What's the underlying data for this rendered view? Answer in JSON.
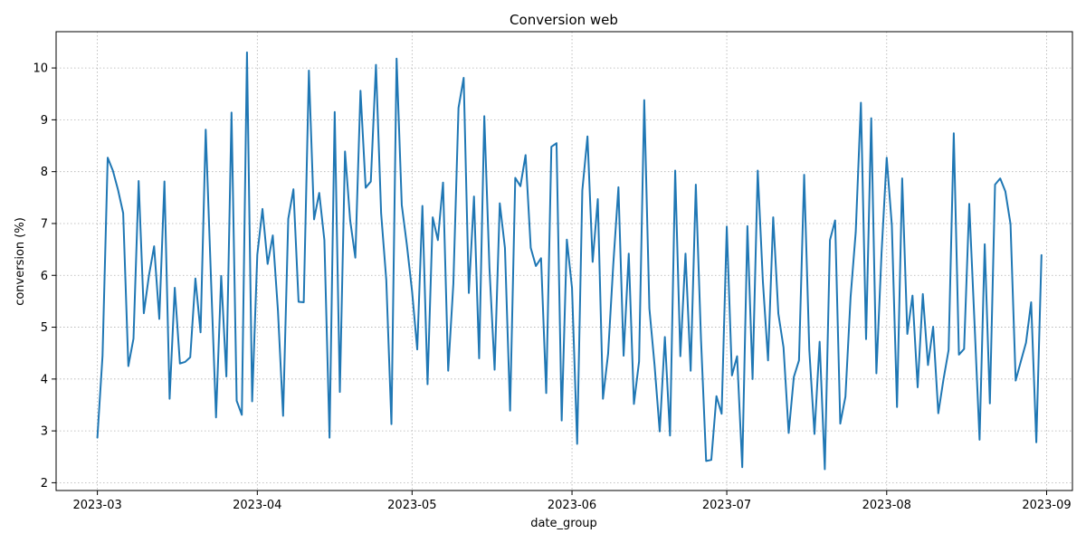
{
  "chart_data": {
    "type": "line",
    "title": "Conversion web",
    "xlabel": "date_group",
    "ylabel": "conversion (%)",
    "grid": true,
    "xlim": [
      "2023-02-21",
      "2023-09-06"
    ],
    "ylim": [
      1.85,
      10.7
    ],
    "x_ticks": [
      "2023-03-01",
      "2023-04-01",
      "2023-05-01",
      "2023-06-01",
      "2023-07-01",
      "2023-08-01",
      "2023-09-01"
    ],
    "x_tick_labels": [
      "2023-03",
      "2023-04",
      "2023-05",
      "2023-06",
      "2023-07",
      "2023-08",
      "2023-09"
    ],
    "y_ticks": [
      2,
      3,
      4,
      5,
      6,
      7,
      8,
      9,
      10
    ],
    "y_tick_labels": [
      "2",
      "3",
      "4",
      "5",
      "6",
      "7",
      "8",
      "9",
      "10"
    ],
    "line_color": "#1f77b4",
    "series": [
      {
        "start_date": "2023-03-01",
        "step_days": 1,
        "values": [
          2.87,
          4.45,
          8.27,
          8.02,
          7.65,
          7.2,
          4.25,
          4.78,
          7.82,
          5.27,
          6.0,
          6.56,
          5.16,
          7.81,
          3.62,
          5.76,
          4.3,
          4.33,
          4.42,
          5.94,
          4.9,
          8.81,
          6.0,
          3.26,
          5.99,
          4.05,
          9.14,
          3.58,
          3.31,
          10.3,
          3.57,
          6.4,
          7.28,
          6.22,
          6.77,
          5.32,
          3.29,
          7.09,
          7.66,
          5.49,
          5.48,
          9.95,
          7.08,
          7.59,
          6.68,
          2.87,
          9.15,
          3.75,
          8.39,
          7.06,
          6.34,
          9.56,
          7.69,
          7.81,
          10.06,
          7.2,
          5.91,
          3.13,
          10.18,
          7.36,
          6.58,
          5.69,
          4.57,
          7.34,
          3.9,
          7.12,
          6.68,
          7.79,
          4.16,
          5.84,
          9.23,
          9.81,
          5.66,
          7.52,
          4.4,
          9.07,
          6.14,
          4.18,
          7.39,
          6.53,
          3.39,
          7.88,
          7.72,
          8.32,
          6.53,
          6.18,
          6.33,
          3.73,
          8.48,
          8.55,
          3.2,
          6.69,
          5.76,
          2.75,
          7.64,
          8.68,
          6.26,
          7.47,
          3.62,
          4.49,
          6.21,
          7.7,
          4.45,
          6.42,
          3.52,
          4.34,
          9.38,
          5.36,
          4.27,
          2.99,
          4.81,
          2.91,
          8.02,
          4.44,
          6.42,
          4.16,
          7.75,
          4.78,
          2.42,
          2.44,
          3.67,
          3.33,
          6.94,
          4.07,
          4.44,
          2.3,
          6.95,
          4.0,
          8.02,
          5.88,
          4.36,
          7.12,
          5.26,
          4.61,
          2.96,
          4.04,
          4.36,
          7.94,
          4.56,
          2.94,
          4.72,
          2.26,
          6.68,
          7.06,
          3.14,
          3.66,
          5.58,
          6.84,
          9.33,
          4.77,
          9.03,
          4.11,
          6.43,
          8.27,
          6.96,
          3.46,
          7.87,
          4.87,
          5.61,
          3.84,
          5.64,
          4.27,
          5.01,
          3.34,
          3.99,
          4.56,
          8.74,
          4.47,
          4.58,
          7.38,
          5.13,
          2.83,
          6.6,
          3.53,
          7.75,
          7.87,
          7.62,
          6.99,
          3.97,
          4.34,
          4.7,
          5.48,
          2.78,
          6.39
        ]
      }
    ]
  }
}
